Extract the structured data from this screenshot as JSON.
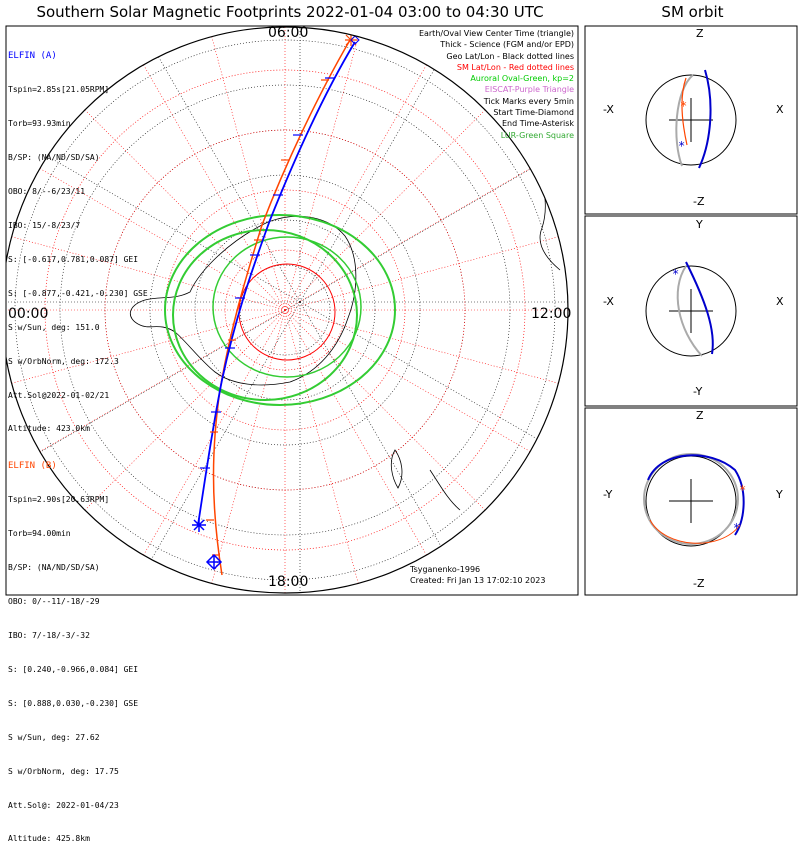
{
  "title": "Southern Solar Magnetic Footprints 2022-01-04 03:00 to 04:30 UTC",
  "sm_orbit_title": "SM orbit",
  "hour_labels": {
    "top": "06:00",
    "left": "00:00",
    "right": "12:00",
    "bottom": "18:00"
  },
  "elfin_a": {
    "name": "ELFIN (A)",
    "color": "#0000ff",
    "lines": [
      "Tspin=2.85s[21.05RPM]",
      "Torb=93.93min",
      "B/SP: (NA/ND/SD/SA)",
      "OBO: 8/--6/23/11",
      "IBO: 15/-8/23/7",
      "S: [-0.617,0.781,0.087] GEI",
      "S: [-0.877,-0.421,-0.230] GSE",
      "S w/Sun, deg: 151.0",
      "S w/OrbNorm, deg: 172.3",
      "Att.Sol@2022-01-02/21",
      "Altitude: 423.0km"
    ]
  },
  "elfin_b": {
    "name": "ELFIN (B)",
    "color": "#ff4500",
    "lines": [
      "Tspin=2.90s[20.63RPM]",
      "Torb=94.00min",
      "B/SP: (NA/ND/SD/SA)",
      "OBO: 0/--11/-18/-29",
      "IBO: 7/-18/-3/-32",
      "S: [0.240,-0.966,0.084] GEI",
      "S: [0.888,0.030,-0.230] GSE",
      "S w/Sun, deg: 27.62",
      "S w/OrbNorm, deg: 17.75",
      "Att.Sol@: 2022-01-04/23",
      "Altitude: 425.8km"
    ]
  },
  "legend": [
    {
      "text": "Earth/Oval View Center Time (triangle)",
      "color": "#000000"
    },
    {
      "text": "Thick - Science (FGM and/or EPD)",
      "color": "#000000"
    },
    {
      "text": "Geo Lat/Lon - Black dotted lines",
      "color": "#000000"
    },
    {
      "text": "SM Lat/Lon - Red dotted lines",
      "color": "#ff0000"
    },
    {
      "text": "Auroral Oval-Green, kp=2",
      "color": "#00cc00"
    },
    {
      "text": "EISCAT-Purple Triangle",
      "color": "#cc66cc"
    },
    {
      "text": "Tick Marks every 5min",
      "color": "#000000"
    },
    {
      "text": "Start Time-Diamond",
      "color": "#000000"
    },
    {
      "text": "End Time-Asterisk",
      "color": "#000000"
    },
    {
      "text": "LUR-Green Square",
      "color": "#33aa33"
    }
  ],
  "credits": [
    "Tsyganenko-1996",
    "Created: Fri Jan 13 17:02:10 2023"
  ],
  "panels": [
    {
      "top": "Z",
      "bottom": "-Z",
      "left": "-X",
      "right": "X"
    },
    {
      "top": "Y",
      "bottom": "-Y",
      "left": "-X",
      "right": "X"
    },
    {
      "top": "Z",
      "bottom": "-Z",
      "left": "-Y",
      "right": "Y"
    }
  ]
}
